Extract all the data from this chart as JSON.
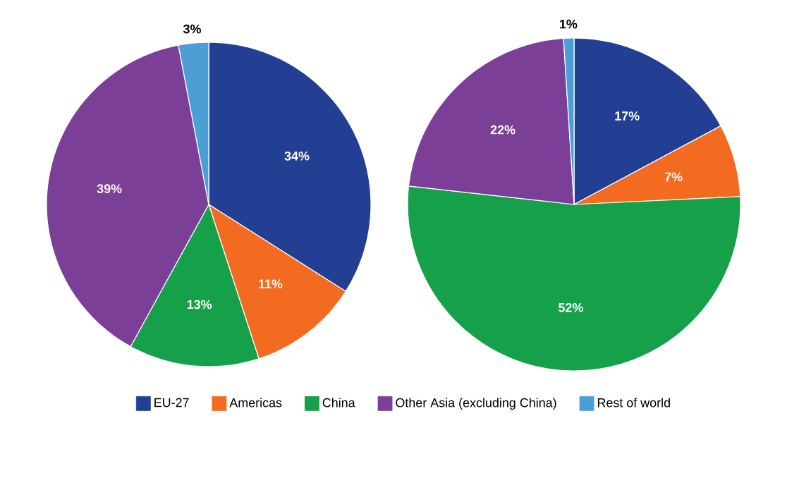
{
  "chart_data": [
    {
      "type": "pie",
      "categories": [
        "EU-27",
        "Americas",
        "China",
        "Other Asia (excluding China)",
        "Rest of world"
      ],
      "values": [
        34,
        11,
        13,
        39,
        3
      ],
      "value_labels": [
        "34%",
        "11%",
        "13%",
        "39%",
        "3%"
      ],
      "colors": [
        "#233f94",
        "#f26b21",
        "#16a04a",
        "#7b3f98",
        "#4b9fd5"
      ],
      "legend": "bottom"
    },
    {
      "type": "pie",
      "categories": [
        null,
        null,
        null,
        null,
        null
      ],
      "values": [
        17,
        7,
        52,
        22,
        1
      ],
      "value_labels": [
        "17%",
        "7%",
        "52%",
        "22%",
        "1%"
      ],
      "colors": [
        "#233f94",
        "#f26b21",
        "#16a04a",
        "#7b3f98",
        "#4b9fd5"
      ]
    }
  ]
}
